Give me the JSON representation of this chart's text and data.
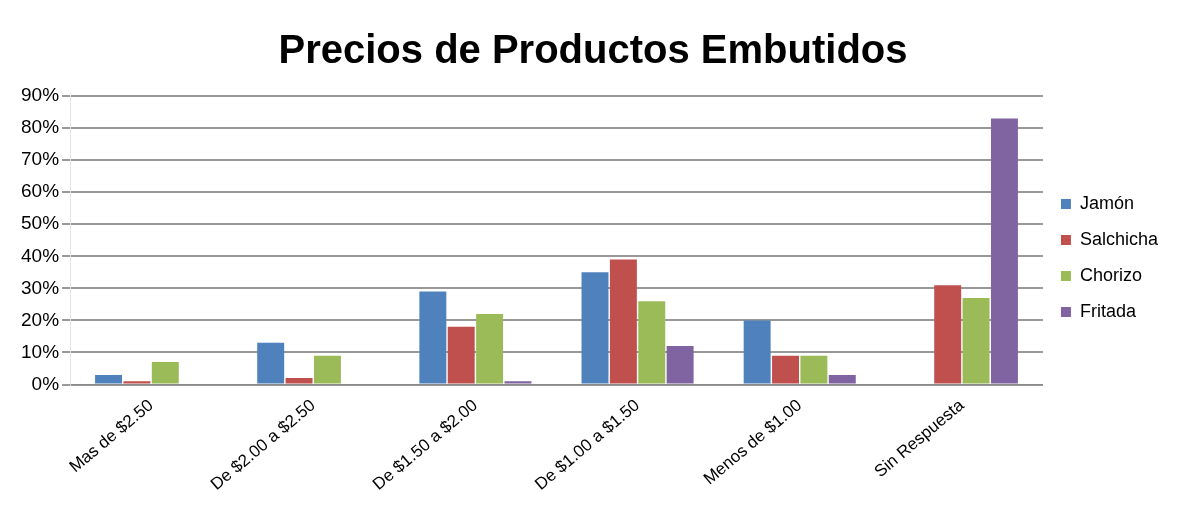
{
  "chart_data": {
    "type": "bar",
    "title": "Precios de Productos Embutidos",
    "categories": [
      "Mas de $2.50",
      "De $2.00 a $2.50",
      "De $1.50 a $2.00",
      "De $1.00 a $1.50",
      "Menos de $1.00",
      "Sin Respuesta"
    ],
    "series": [
      {
        "name": "Jamón",
        "color": "#4f81bd",
        "values": [
          3,
          13,
          29,
          35,
          20,
          0
        ]
      },
      {
        "name": "Salchicha",
        "color": "#c0504d",
        "values": [
          1,
          2,
          18,
          39,
          9,
          31
        ]
      },
      {
        "name": "Chorizo",
        "color": "#9bbb59",
        "values": [
          7,
          9,
          22,
          26,
          9,
          27
        ]
      },
      {
        "name": "Fritada",
        "color": "#8064a2",
        "values": [
          0,
          0,
          1,
          12,
          3,
          83
        ]
      }
    ],
    "ylim": [
      0,
      90
    ],
    "yticks": [
      {
        "value": 0,
        "label": "0%"
      },
      {
        "value": 10,
        "label": "10%"
      },
      {
        "value": 20,
        "label": "20%"
      },
      {
        "value": 30,
        "label": "30%"
      },
      {
        "value": 40,
        "label": "40%"
      },
      {
        "value": 50,
        "label": "50%"
      },
      {
        "value": 60,
        "label": "60%"
      },
      {
        "value": 70,
        "label": "70%"
      },
      {
        "value": 80,
        "label": "80%"
      },
      {
        "value": 90,
        "label": "90%"
      }
    ],
    "grid": "y",
    "legend": "right"
  }
}
